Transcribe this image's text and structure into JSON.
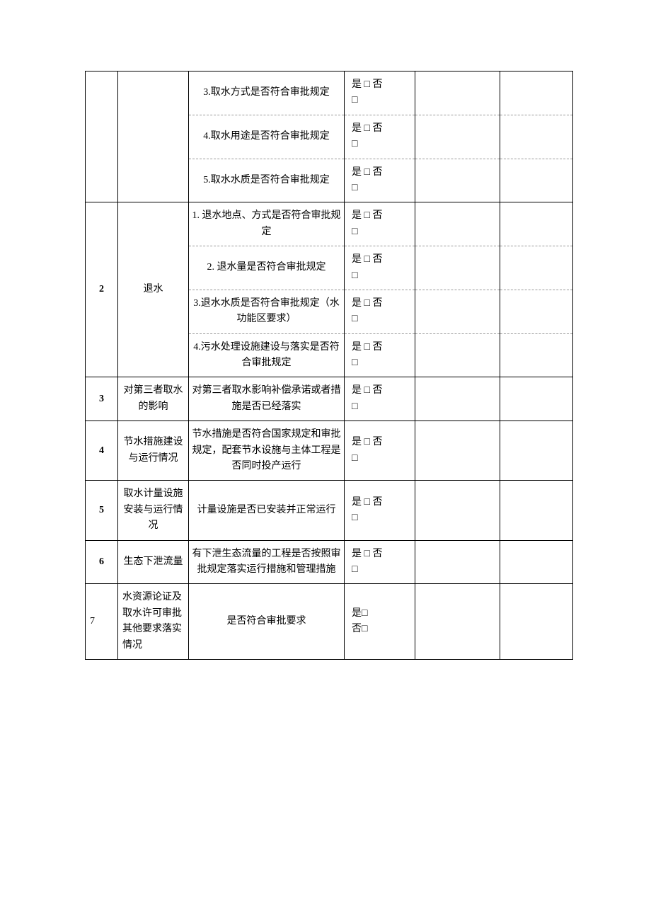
{
  "checkbox_yes": "是 □",
  "checkbox_no": "否 □",
  "checkbox_yes_alt": "是□",
  "checkbox_no_alt": "否□",
  "rows_top_items": [
    "3.取水方式是否符合审批规定",
    "4.取水用途是否符合审批规定",
    "5.取水水质是否符合审批规定"
  ],
  "sections": [
    {
      "num": "2",
      "cat": "退水",
      "items": [
        "1. 退水地点、方式是否符合审批规定",
        "2. 退水量是否符合审批规定",
        "3.退水水质是否符合审批规定（水功能区要求）",
        "4.污水处理设施建设与落实是否符合审批规定"
      ]
    },
    {
      "num": "3",
      "cat": "对第三者取水的影响",
      "items": [
        "对第三者取水影响补偿承诺或者措施是否已经落实"
      ]
    },
    {
      "num": "4",
      "cat": "节水措施建设与运行情况",
      "items": [
        "节水措施是否符合国家规定和审批规定，配套节水设施与主体工程是否同时投产运行"
      ]
    },
    {
      "num": "5",
      "cat": "取水计量设施安装与运行情况",
      "items": [
        "计量设施是否已安装并正常运行"
      ]
    },
    {
      "num": "6",
      "cat": "生态下泄流量",
      "items": [
        "有下泄生态流量的工程是否按照审批规定落实运行措施和管理措施"
      ]
    },
    {
      "num": "7",
      "cat": "水资源论证及取水许可审批其他要求落实情况",
      "items": [
        "是否符合审批要求"
      ],
      "alt_checkbox": true,
      "left_align_num": true,
      "left_align_cat": true
    }
  ]
}
